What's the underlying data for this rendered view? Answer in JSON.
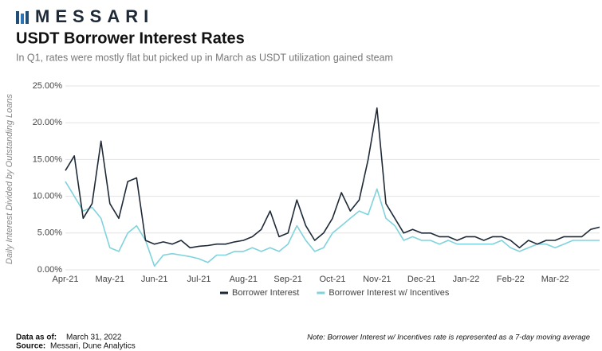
{
  "brand": "MESSARI",
  "chart_data": {
    "type": "line",
    "title": "USDT Borrower Interest Rates",
    "subtitle": "In Q1, rates were mostly flat but picked up in March as USDT utilization gained steam",
    "y_label": "Daily Interest Divided by Outstanding Loans",
    "categories": [
      "Apr-21",
      null,
      null,
      null,
      null,
      "May-21",
      null,
      null,
      null,
      null,
      "Jun-21",
      null,
      null,
      null,
      null,
      "Jul-21",
      null,
      null,
      null,
      null,
      "Aug-21",
      null,
      null,
      null,
      null,
      "Sep-21",
      null,
      null,
      null,
      null,
      "Oct-21",
      null,
      null,
      null,
      null,
      "Nov-21",
      null,
      null,
      null,
      null,
      "Dec-21",
      null,
      null,
      null,
      null,
      "Jan-22",
      null,
      null,
      null,
      null,
      "Feb-22",
      null,
      null,
      null,
      null,
      "Mar-22",
      null,
      null,
      null,
      null,
      null
    ],
    "series": [
      {
        "name": "Borrower Interest",
        "color": "#1f2a38",
        "values": [
          13.5,
          15.5,
          7,
          9,
          17.5,
          9,
          7,
          12,
          12.5,
          4,
          3.5,
          3.8,
          3.5,
          4,
          3,
          3.2,
          3.3,
          3.5,
          3.5,
          3.8,
          4,
          4.5,
          5.5,
          8,
          4.5,
          5,
          9.5,
          6,
          4,
          5,
          7,
          10.5,
          8,
          9.5,
          15,
          22,
          9,
          7,
          5,
          5.5,
          5,
          5,
          4.5,
          4.5,
          4,
          4.5,
          4.5,
          4,
          4.5,
          4.5,
          4,
          3,
          4,
          3.5,
          4,
          4,
          4.5,
          4.5,
          4.5,
          5.5,
          5.8
        ]
      },
      {
        "name": "Borrower Interest w/ Incentives",
        "color": "#7fd3dc",
        "values": [
          12,
          10,
          8,
          8.5,
          7,
          3,
          2.5,
          5,
          6,
          4,
          0.5,
          2,
          2.2,
          2,
          1.8,
          1.5,
          1,
          2,
          2,
          2.5,
          2.5,
          3,
          2.5,
          3,
          2.5,
          3.5,
          6,
          4,
          2.5,
          3,
          5,
          6,
          7,
          8,
          7.5,
          11,
          7,
          6,
          4,
          4.5,
          4,
          4,
          3.5,
          4,
          3.5,
          3.5,
          3.5,
          3.5,
          3.5,
          4,
          3,
          2.5,
          3,
          3.5,
          3.5,
          3,
          3.5,
          4,
          4,
          4,
          4
        ]
      }
    ],
    "ylim": [
      0,
      25
    ],
    "yticks": [
      {
        "value": 0,
        "label": "0.00%"
      },
      {
        "value": 5,
        "label": "5.00%"
      },
      {
        "value": 10,
        "label": "10.00%"
      },
      {
        "value": 15,
        "label": "15.00%"
      },
      {
        "value": 20,
        "label": "20.00%"
      },
      {
        "value": 25,
        "label": "25.00%"
      }
    ],
    "grid": true
  },
  "footer": {
    "date_label": "Data as of:",
    "date": "March 31, 2022",
    "source_label": "Source:",
    "source": "Messari, Dune Analytics",
    "note": "Note: Borrower Interest w/ Incentives rate is represented as a 7-day moving average"
  }
}
